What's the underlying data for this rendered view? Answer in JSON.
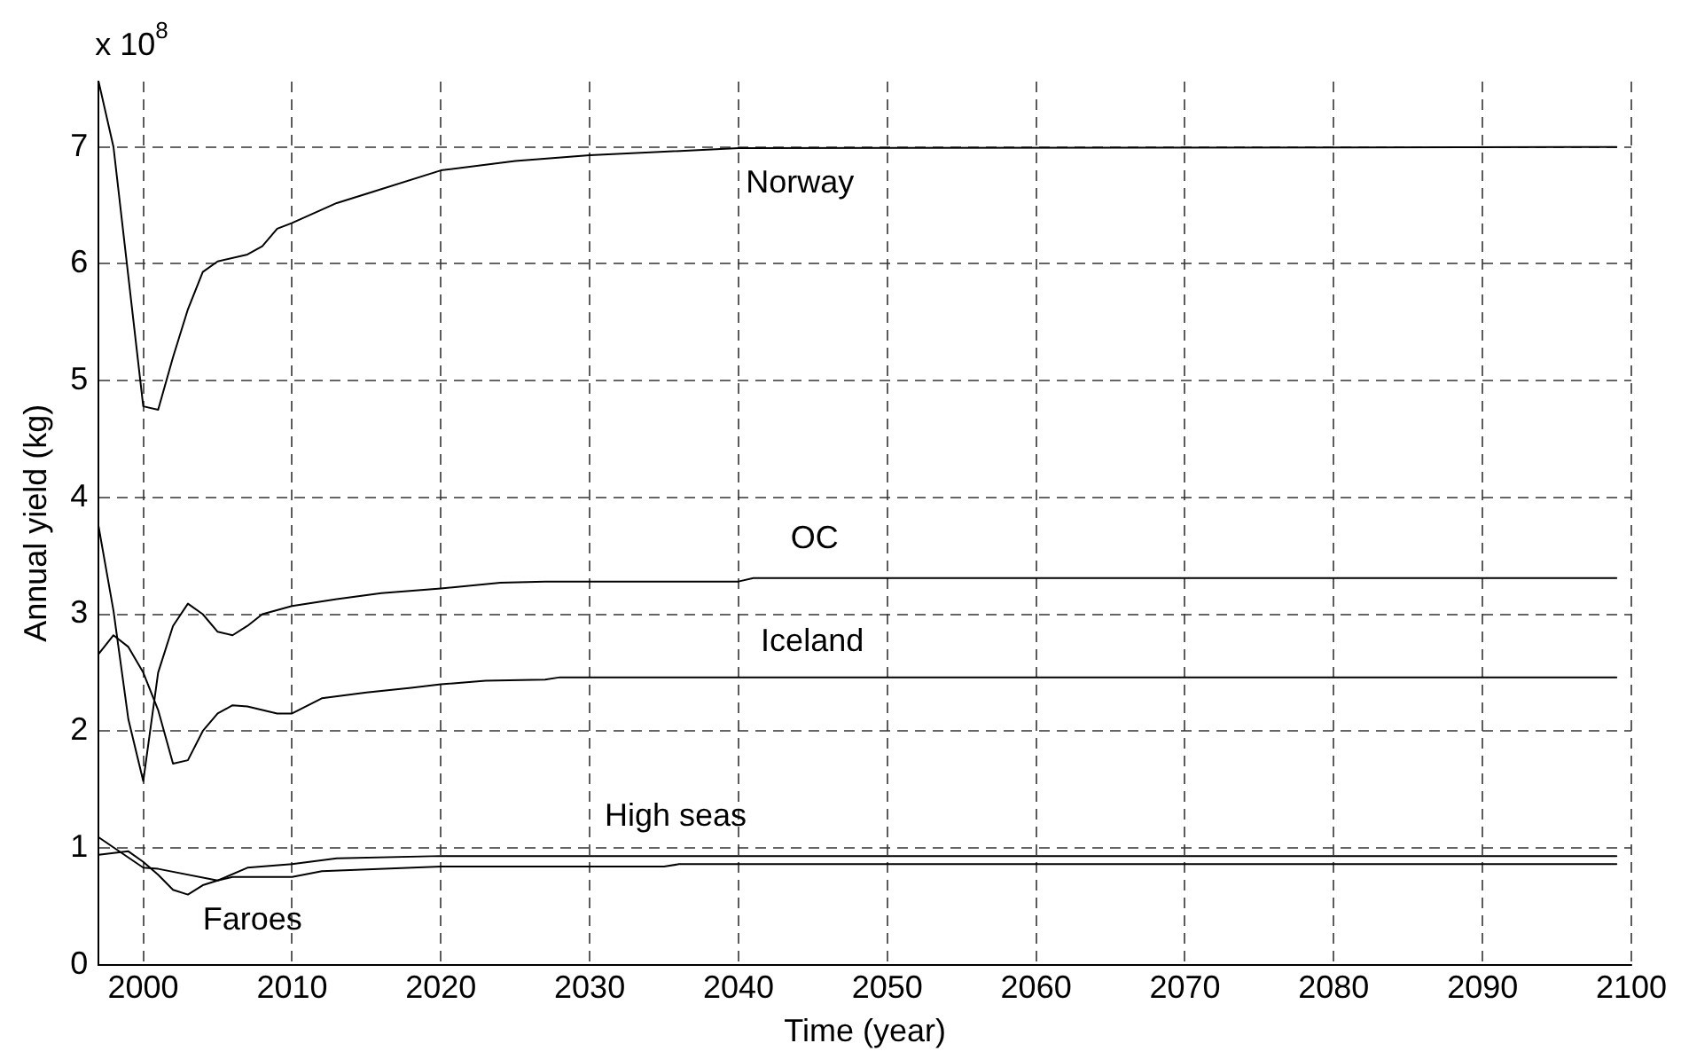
{
  "chart_data": {
    "type": "line",
    "xlabel": "Time (year)",
    "ylabel": "Annual yield (kg)",
    "annotations": [
      "x 10$^{8}$"
    ],
    "xlim": [
      1997,
      2100
    ],
    "xticks": [
      2000,
      2010,
      2020,
      2030,
      2040,
      2050,
      2060,
      2070,
      2080,
      2090,
      2100
    ],
    "ylim": [
      0,
      7.56
    ],
    "yticks": [
      0,
      1,
      2,
      3,
      4,
      5,
      6,
      7
    ],
    "grid": true,
    "legend": false,
    "marker": "none",
    "line_style": "solid",
    "series": [
      {
        "name": "Norway",
        "color": "#000000",
        "x": [
          1997,
          1998,
          2000,
          2001,
          2002,
          2003,
          2004,
          2005,
          2007,
          2008,
          2009,
          2010,
          2013,
          2015,
          2020,
          2025,
          2030,
          2035,
          2040,
          2099
        ],
        "values": [
          7.56,
          7.0,
          4.78,
          4.75,
          5.2,
          5.61,
          5.93,
          6.02,
          6.08,
          6.15,
          6.3,
          6.35,
          6.52,
          6.6,
          6.8,
          6.88,
          6.93,
          6.96,
          6.99,
          7.0
        ]
      },
      {
        "name": "OC",
        "color": "#000000",
        "x": [
          1997,
          1998,
          1999,
          2000,
          2001,
          2002,
          2003,
          2004,
          2005,
          2006,
          2007,
          2008,
          2010,
          2013,
          2016,
          2020,
          2024,
          2027,
          2040,
          2041,
          2099
        ],
        "values": [
          3.75,
          3.03,
          2.1,
          1.57,
          2.5,
          2.9,
          3.09,
          3.0,
          2.85,
          2.82,
          2.9,
          3.0,
          3.07,
          3.13,
          3.18,
          3.22,
          3.27,
          3.28,
          3.28,
          3.31,
          3.31
        ]
      },
      {
        "name": "Iceland",
        "color": "#000000",
        "x": [
          1997,
          1998,
          1999,
          2000,
          2001,
          2002,
          2003,
          2004,
          2005,
          2006,
          2007,
          2009,
          2010,
          2012,
          2015,
          2018,
          2020,
          2023,
          2027,
          2028,
          2099
        ],
        "values": [
          2.66,
          2.82,
          2.72,
          2.5,
          2.18,
          1.72,
          1.75,
          2.0,
          2.15,
          2.22,
          2.21,
          2.15,
          2.15,
          2.28,
          2.33,
          2.37,
          2.4,
          2.43,
          2.44,
          2.46,
          2.46
        ]
      },
      {
        "name": "High seas",
        "color": "#000000",
        "x": [
          1997,
          2000,
          2001,
          2005,
          2007,
          2010,
          2013,
          2020,
          2099
        ],
        "values": [
          1.09,
          0.83,
          0.82,
          0.72,
          0.83,
          0.86,
          0.91,
          0.93,
          0.93
        ]
      },
      {
        "name": "Faroes",
        "color": "#000000",
        "x": [
          1997,
          1999,
          2000,
          2001,
          2002,
          2003,
          2004,
          2005,
          2006,
          2010,
          2012,
          2020,
          2035,
          2036,
          2099
        ],
        "values": [
          0.94,
          0.97,
          0.88,
          0.77,
          0.64,
          0.6,
          0.68,
          0.72,
          0.75,
          0.75,
          0.8,
          0.84,
          0.84,
          0.86,
          0.86
        ]
      }
    ]
  }
}
